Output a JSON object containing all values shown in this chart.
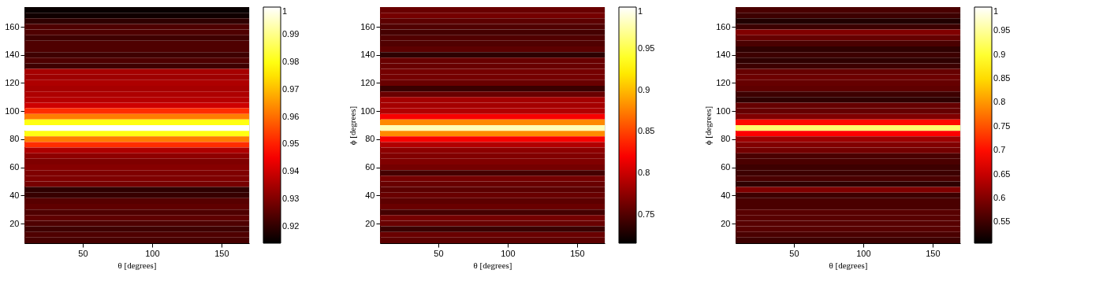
{
  "chart_data": [
    {
      "type": "heatmap",
      "xlabel": "θ [degrees]",
      "xlim": [
        8,
        170
      ],
      "ylim": [
        6,
        174
      ],
      "xticks": [
        50,
        100,
        150
      ],
      "yticks": [
        20,
        40,
        60,
        80,
        100,
        120,
        140,
        160
      ],
      "y": [
        172,
        168,
        164,
        160,
        156,
        152,
        148,
        144,
        140,
        136,
        132,
        128,
        124,
        120,
        116,
        112,
        108,
        104,
        100,
        96,
        92,
        88,
        84,
        80,
        76,
        72,
        68,
        64,
        60,
        56,
        52,
        48,
        44,
        40,
        36,
        32,
        28,
        24,
        20,
        16,
        12,
        8
      ],
      "cells": [
        [
          0.915
        ],
        [
          0.916
        ],
        [
          0.92
        ],
        [
          0.924
        ],
        [
          0.924
        ],
        [
          0.922
        ],
        [
          0.924
        ],
        [
          0.924
        ],
        [
          0.922
        ],
        [
          0.924
        ],
        [
          0.922
        ],
        [
          0.935
        ],
        [
          0.934
        ],
        [
          0.936
        ],
        [
          0.935
        ],
        [
          0.936
        ],
        [
          0.937
        ],
        [
          0.94
        ],
        [
          0.952
        ],
        [
          0.962
        ],
        [
          0.98
        ],
        [
          1.0
        ],
        [
          0.98
        ],
        [
          0.962
        ],
        [
          0.952
        ],
        [
          0.936
        ],
        [
          0.932
        ],
        [
          0.93
        ],
        [
          0.931
        ],
        [
          0.93
        ],
        [
          0.93
        ],
        [
          0.929
        ],
        [
          0.92
        ],
        [
          0.921
        ],
        [
          0.925
        ],
        [
          0.926
        ],
        [
          0.924
        ],
        [
          0.926
        ],
        [
          0.924
        ],
        [
          0.922
        ],
        [
          0.924
        ],
        [
          0.923
        ]
      ],
      "clim": [
        0.914,
        1
      ],
      "cticks": [
        0.92,
        0.93,
        0.94,
        0.95,
        0.96,
        0.97,
        0.98,
        0.99,
        1
      ]
    },
    {
      "type": "heatmap",
      "xlabel": "θ [degrees]",
      "ylabel": "ϕ [degrees]",
      "xlim": [
        8,
        170
      ],
      "ylim": [
        6,
        174
      ],
      "xticks": [
        50,
        100,
        150
      ],
      "yticks": [
        20,
        40,
        60,
        80,
        100,
        120,
        140,
        160
      ],
      "y": [
        172,
        168,
        164,
        160,
        156,
        152,
        148,
        144,
        140,
        136,
        132,
        128,
        124,
        120,
        116,
        112,
        108,
        104,
        100,
        96,
        92,
        88,
        84,
        80,
        76,
        72,
        68,
        64,
        60,
        56,
        52,
        48,
        44,
        40,
        36,
        32,
        28,
        24,
        20,
        16,
        12,
        8
      ],
      "cells": [
        [
          0.76
        ],
        [
          0.765
        ],
        [
          0.755
        ],
        [
          0.75
        ],
        [
          0.745
        ],
        [
          0.75
        ],
        [
          0.75
        ],
        [
          0.755
        ],
        [
          0.735
        ],
        [
          0.76
        ],
        [
          0.76
        ],
        [
          0.765
        ],
        [
          0.765
        ],
        [
          0.76
        ],
        [
          0.74
        ],
        [
          0.76
        ],
        [
          0.785
        ],
        [
          0.785
        ],
        [
          0.79
        ],
        [
          0.82
        ],
        [
          0.88
        ],
        [
          0.98
        ],
        [
          0.88
        ],
        [
          0.82
        ],
        [
          0.79
        ],
        [
          0.775
        ],
        [
          0.77
        ],
        [
          0.77
        ],
        [
          0.765
        ],
        [
          0.745
        ],
        [
          0.765
        ],
        [
          0.76
        ],
        [
          0.755
        ],
        [
          0.76
        ],
        [
          0.755
        ],
        [
          0.76
        ],
        [
          0.745
        ],
        [
          0.765
        ],
        [
          0.76
        ],
        [
          0.74
        ],
        [
          0.76
        ],
        [
          0.755
        ]
      ],
      "clim": [
        0.716,
        1
      ],
      "cticks": [
        0.75,
        0.8,
        0.85,
        0.9,
        0.95,
        1
      ]
    },
    {
      "type": "heatmap",
      "xlabel": "θ [degrees]",
      "ylabel": "ϕ [degrees]",
      "xlim": [
        8,
        170
      ],
      "ylim": [
        6,
        174
      ],
      "xticks": [
        50,
        100,
        150
      ],
      "yticks": [
        20,
        40,
        60,
        80,
        100,
        120,
        140,
        160
      ],
      "y": [
        172,
        168,
        164,
        160,
        156,
        152,
        148,
        144,
        140,
        136,
        132,
        128,
        124,
        120,
        116,
        112,
        108,
        104,
        100,
        96,
        92,
        88,
        84,
        80,
        76,
        72,
        68,
        64,
        60,
        56,
        52,
        48,
        44,
        40,
        36,
        32,
        28,
        24,
        20,
        16,
        12,
        8
      ],
      "cells": [
        [
          0.56
        ],
        [
          0.55
        ],
        [
          0.53
        ],
        [
          0.55
        ],
        [
          0.6
        ],
        [
          0.58
        ],
        [
          0.56
        ],
        [
          0.54
        ],
        [
          0.55
        ],
        [
          0.54
        ],
        [
          0.55
        ],
        [
          0.58
        ],
        [
          0.585
        ],
        [
          0.58
        ],
        [
          0.575
        ],
        [
          0.55
        ],
        [
          0.54
        ],
        [
          0.58
        ],
        [
          0.58
        ],
        [
          0.6
        ],
        [
          0.7
        ],
        [
          0.93
        ],
        [
          0.69
        ],
        [
          0.62
        ],
        [
          0.6
        ],
        [
          0.59
        ],
        [
          0.56
        ],
        [
          0.56
        ],
        [
          0.55
        ],
        [
          0.55
        ],
        [
          0.56
        ],
        [
          0.54
        ],
        [
          0.6
        ],
        [
          0.55
        ],
        [
          0.56
        ],
        [
          0.56
        ],
        [
          0.57
        ],
        [
          0.57
        ],
        [
          0.57
        ],
        [
          0.57
        ],
        [
          0.56
        ],
        [
          0.55
        ]
      ],
      "clim": [
        0.506,
        1
      ],
      "cticks": [
        0.55,
        0.6,
        0.65,
        0.7,
        0.75,
        0.8,
        0.85,
        0.9,
        0.95,
        1
      ]
    }
  ]
}
